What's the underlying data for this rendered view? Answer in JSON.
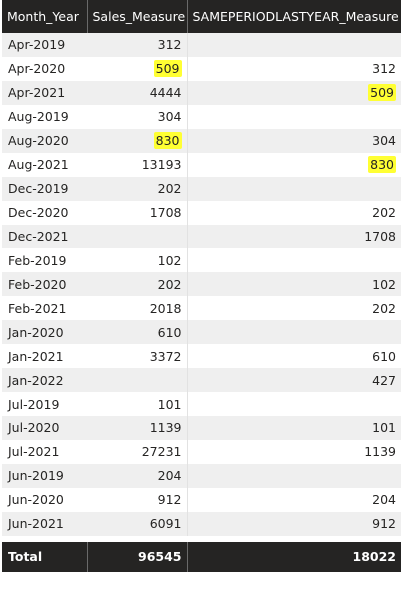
{
  "columns": [
    "Month_Year",
    "Sales_Measure",
    "SAMEPERIODLASTYEAR_Measure"
  ],
  "highlight_color": "#ffff33",
  "header_bg": "#252423",
  "rows": [
    {
      "month": "Apr-2019",
      "sales": "312",
      "last_year": ""
    },
    {
      "month": "Apr-2020",
      "sales": "509",
      "last_year": "312"
    },
    {
      "month": "Apr-2021",
      "sales": "4444",
      "last_year": "509"
    },
    {
      "month": "Aug-2019",
      "sales": "304",
      "last_year": ""
    },
    {
      "month": "Aug-2020",
      "sales": "830",
      "last_year": "304"
    },
    {
      "month": "Aug-2021",
      "sales": "13193",
      "last_year": "830"
    },
    {
      "month": "Dec-2019",
      "sales": "202",
      "last_year": ""
    },
    {
      "month": "Dec-2020",
      "sales": "1708",
      "last_year": "202"
    },
    {
      "month": "Dec-2021",
      "sales": "",
      "last_year": "1708"
    },
    {
      "month": "Feb-2019",
      "sales": "102",
      "last_year": ""
    },
    {
      "month": "Feb-2020",
      "sales": "202",
      "last_year": "102"
    },
    {
      "month": "Feb-2021",
      "sales": "2018",
      "last_year": "202"
    },
    {
      "month": "Jan-2020",
      "sales": "610",
      "last_year": ""
    },
    {
      "month": "Jan-2021",
      "sales": "3372",
      "last_year": "610"
    },
    {
      "month": "Jan-2022",
      "sales": "",
      "last_year": "427"
    },
    {
      "month": "Jul-2019",
      "sales": "101",
      "last_year": ""
    },
    {
      "month": "Jul-2020",
      "sales": "1139",
      "last_year": "101"
    },
    {
      "month": "Jul-2021",
      "sales": "27231",
      "last_year": "1139"
    },
    {
      "month": "Jun-2019",
      "sales": "204",
      "last_year": ""
    },
    {
      "month": "Jun-2020",
      "sales": "912",
      "last_year": "204"
    },
    {
      "month": "Jun-2021",
      "sales": "6091",
      "last_year": "912"
    }
  ],
  "highlighted_cells": [
    {
      "row": 1,
      "col": "sales"
    },
    {
      "row": 2,
      "col": "last_year"
    },
    {
      "row": 4,
      "col": "sales"
    },
    {
      "row": 5,
      "col": "last_year"
    }
  ],
  "total": {
    "label": "Total",
    "sales": "96545",
    "last_year": "18022"
  }
}
